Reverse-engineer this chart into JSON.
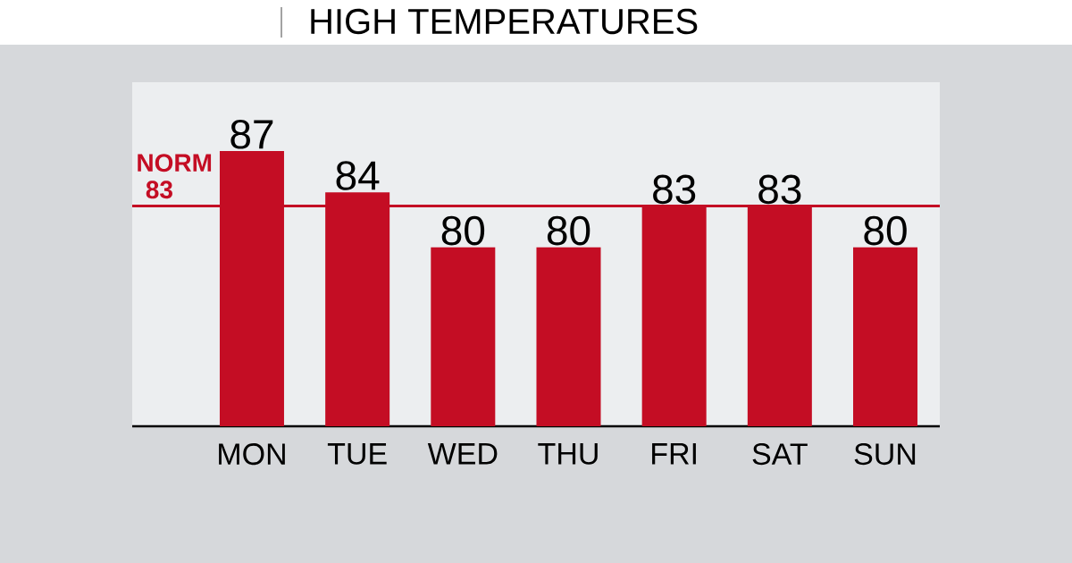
{
  "chart_data": {
    "type": "bar",
    "title": "HIGH TEMPERATURES",
    "categories": [
      "MON",
      "TUE",
      "WED",
      "THU",
      "FRI",
      "SAT",
      "SUN"
    ],
    "values": [
      87,
      84,
      80,
      80,
      83,
      83,
      80
    ],
    "color": "#c40d24",
    "ylim": [
      67,
      92
    ],
    "data_labels": true,
    "tick_labels": "x",
    "ref_lines": [
      {
        "axis": "y",
        "value": 83,
        "label": "NORM 83",
        "color": "#c40d24"
      }
    ]
  }
}
